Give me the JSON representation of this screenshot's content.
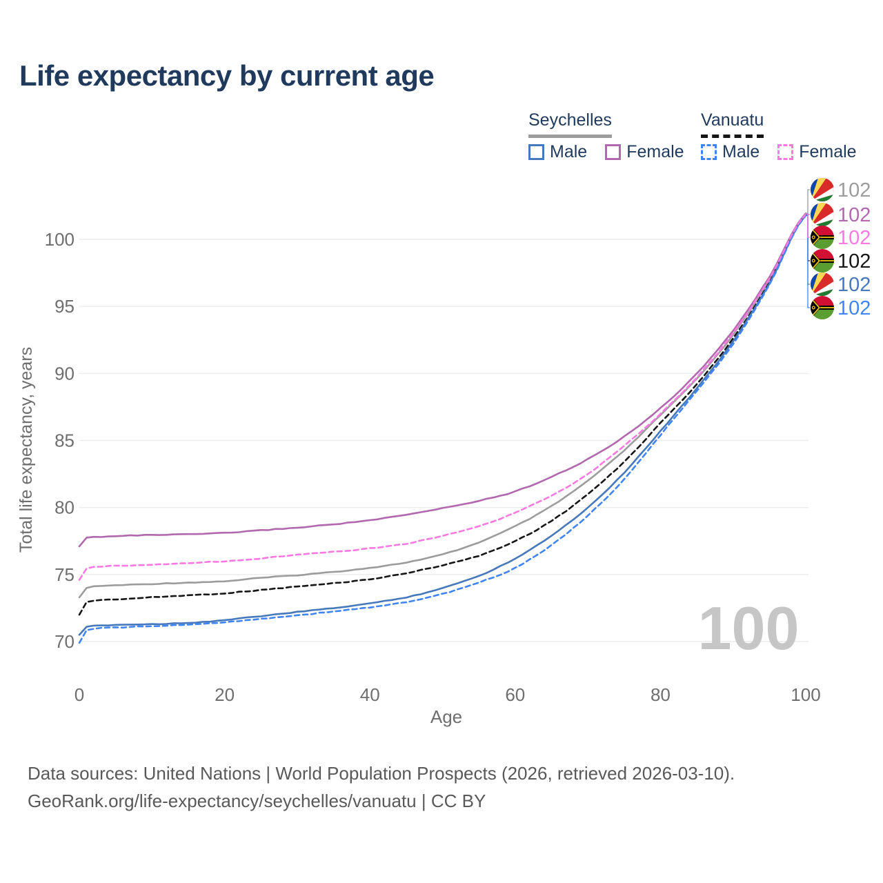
{
  "title": "Life expectancy by current age",
  "legend": {
    "seychelles": {
      "label": "Seychelles",
      "male": "Male",
      "female": "Female"
    },
    "vanuatu": {
      "label": "Vanuatu",
      "male": "Male",
      "female": "Female"
    }
  },
  "axes": {
    "x_label": "Age",
    "y_label": "Total life expectancy, years",
    "x_ticks": [
      0,
      20,
      40,
      60,
      80,
      100
    ],
    "y_ticks": [
      70,
      75,
      80,
      85,
      90,
      95,
      100
    ]
  },
  "watermark": "100",
  "footer": {
    "line1": "Data sources: United Nations | World Population Prospects (2026, retrieved 2026-03-10).",
    "line2": "GeoRank.org/life-expectancy/seychelles/vanuatu | CC BY"
  },
  "colors": {
    "title_text": "#1f3a5c",
    "legend_text": "#1f3a5c",
    "axis_text": "#6e6e6e",
    "gridline": "#ececec",
    "watermark": "#c6c6c6",
    "footer_text": "#595959",
    "sey_male": "#4678bc",
    "sey_female": "#b168ae",
    "sey_all": "#9c9c9c",
    "van_male": "#4185f4",
    "van_female": "#f879e1",
    "van_all": "#161616"
  },
  "chart_data": {
    "type": "line",
    "title": "Life expectancy by current age",
    "xlabel": "Age",
    "ylabel": "Total life expectancy, years",
    "x_range": [
      0,
      100
    ],
    "y_range": [
      69.5,
      102.5
    ],
    "grid": "horizontal-only",
    "legend_position": "top-right",
    "current_age_indicator": "100",
    "ages": [
      0,
      1,
      2,
      3,
      5,
      10,
      15,
      20,
      25,
      30,
      35,
      40,
      45,
      50,
      55,
      60,
      65,
      70,
      75,
      80,
      85,
      90,
      95,
      100
    ],
    "series": [
      {
        "id": "sey_all",
        "name": "Seychelles (both sexes)",
        "country": "seychelles",
        "sex": "all",
        "color_key": "sey_all",
        "dash": "solid",
        "end_label": "102",
        "label_row": 0,
        "values": [
          73.3,
          74.0,
          74.1,
          74.15,
          74.2,
          74.3,
          74.4,
          74.5,
          74.75,
          74.95,
          75.2,
          75.5,
          75.9,
          76.5,
          77.4,
          78.6,
          80.1,
          82.0,
          84.25,
          86.9,
          89.6,
          92.9,
          97.0,
          101.95
        ]
      },
      {
        "id": "van_all",
        "name": "Vanuatu (both sexes)",
        "country": "vanuatu",
        "sex": "all",
        "color_key": "van_all",
        "dash": "dashed",
        "end_label": "102",
        "label_row": 3,
        "values": [
          72.0,
          72.95,
          73.05,
          73.1,
          73.15,
          73.3,
          73.45,
          73.6,
          73.85,
          74.1,
          74.35,
          74.65,
          75.1,
          75.7,
          76.4,
          77.5,
          79.0,
          81.0,
          83.4,
          86.3,
          89.2,
          92.6,
          96.8,
          101.85
        ]
      },
      {
        "id": "sey_male",
        "name": "Seychelles Male",
        "country": "seychelles",
        "sex": "male",
        "color_key": "sey_male",
        "dash": "solid",
        "end_label": "102",
        "label_row": 4,
        "values": [
          70.5,
          71.1,
          71.18,
          71.2,
          71.25,
          71.3,
          71.4,
          71.6,
          71.9,
          72.2,
          72.5,
          72.85,
          73.3,
          74.0,
          74.9,
          76.2,
          77.9,
          80.0,
          82.6,
          85.7,
          88.9,
          92.4,
          96.7,
          101.8
        ]
      },
      {
        "id": "sey_female",
        "name": "Seychelles Female",
        "country": "seychelles",
        "sex": "female",
        "color_key": "sey_female",
        "dash": "solid",
        "end_label": "102",
        "label_row": 1,
        "values": [
          77.1,
          77.75,
          77.8,
          77.82,
          77.88,
          77.95,
          78.0,
          78.1,
          78.3,
          78.5,
          78.75,
          79.05,
          79.45,
          79.95,
          80.5,
          81.2,
          82.3,
          83.6,
          85.3,
          87.4,
          90.0,
          93.2,
          97.2,
          101.9
        ]
      },
      {
        "id": "van_male",
        "name": "Vanuatu Male",
        "country": "vanuatu",
        "sex": "male",
        "color_key": "van_male",
        "dash": "dashed",
        "end_label": "102",
        "label_row": 5,
        "values": [
          69.9,
          70.85,
          70.95,
          71.0,
          71.05,
          71.15,
          71.25,
          71.45,
          71.7,
          71.95,
          72.25,
          72.55,
          72.95,
          73.55,
          74.4,
          75.5,
          77.2,
          79.4,
          82.1,
          85.4,
          88.7,
          92.2,
          96.6,
          101.78
        ]
      },
      {
        "id": "van_female",
        "name": "Vanuatu Female",
        "country": "vanuatu",
        "sex": "female",
        "color_key": "van_female",
        "dash": "dashed",
        "end_label": "102",
        "label_row": 2,
        "values": [
          74.6,
          75.45,
          75.55,
          75.6,
          75.65,
          75.75,
          75.85,
          76.0,
          76.2,
          76.5,
          76.7,
          76.95,
          77.3,
          77.9,
          78.6,
          79.6,
          80.9,
          82.5,
          84.6,
          87.0,
          89.7,
          93.0,
          97.05,
          101.88
        ]
      }
    ]
  }
}
